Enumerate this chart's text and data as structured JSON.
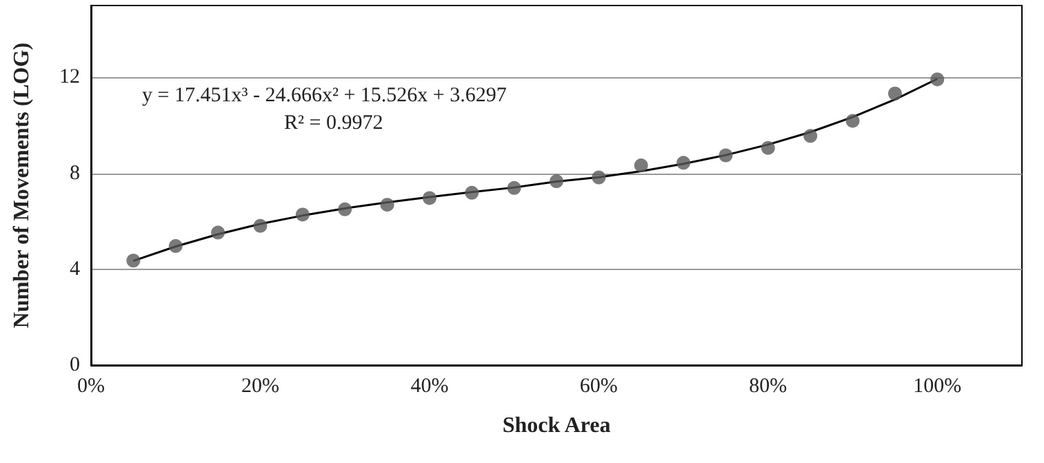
{
  "chart_data": {
    "type": "scatter",
    "xlabel": "Shock Area",
    "ylabel": "Number of Movements (LOG)",
    "annotations": [
      "y = 17.451x³ - 24.666x² + 15.526x + 3.6297",
      "R² = 0.9972"
    ],
    "xlim": [
      0,
      1.1
    ],
    "xticks": [
      {
        "value": 0,
        "label": "0%"
      },
      {
        "value": 0.2,
        "label": "20%"
      },
      {
        "value": 0.4,
        "label": "40%"
      },
      {
        "value": 0.6,
        "label": "60%"
      },
      {
        "value": 0.8,
        "label": "80%"
      },
      {
        "value": 1,
        "label": "100%"
      }
    ],
    "ylim": [
      0,
      15
    ],
    "yticks": [
      0,
      4,
      8,
      12
    ],
    "grid": "y",
    "series": [
      {
        "type": "scatter",
        "color": "#595959",
        "marker": "circle",
        "x": [
          0.05,
          0.1,
          0.15,
          0.2,
          0.25,
          0.3,
          0.35,
          0.4,
          0.45,
          0.5,
          0.55,
          0.6,
          0.65,
          0.7,
          0.75,
          0.8,
          0.85,
          0.9,
          0.95,
          1.0
        ],
        "values": [
          4.36,
          4.97,
          5.53,
          5.81,
          6.28,
          6.5,
          6.69,
          6.97,
          7.19,
          7.39,
          7.67,
          7.83,
          8.33,
          8.44,
          8.75,
          9.06,
          9.56,
          10.19,
          11.33,
          11.92
        ]
      },
      {
        "type": "line",
        "color": "#000000",
        "marker": "none",
        "line_style": "solid",
        "x": [
          0.05,
          0.1,
          0.15,
          0.2,
          0.25,
          0.3,
          0.35,
          0.4,
          0.45,
          0.5,
          0.55,
          0.6,
          0.65,
          0.7,
          0.75,
          0.8,
          0.85,
          0.9,
          0.95,
          1.0
        ],
        "values": [
          4.35,
          4.95,
          5.46,
          5.89,
          6.24,
          6.54,
          6.79,
          7.01,
          7.22,
          7.41,
          7.66,
          7.84,
          8.09,
          8.4,
          8.76,
          9.2,
          9.72,
          10.35,
          11.08,
          11.94
        ]
      }
    ]
  }
}
